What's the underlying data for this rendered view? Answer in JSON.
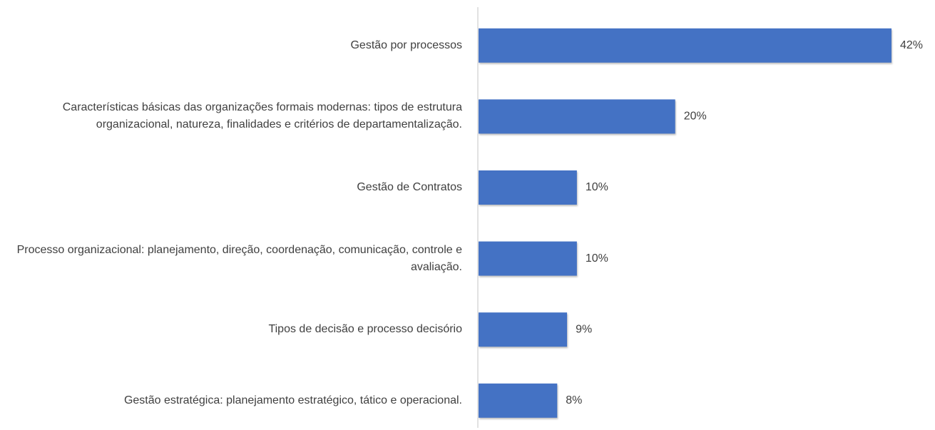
{
  "chart_data": {
    "type": "barh",
    "categories": [
      "Gestão por processos",
      "Características básicas das organizações formais modernas: tipos de estrutura organizacional, natureza, finalidades e critérios de departamentalização.",
      "Gestão de Contratos",
      "Processo organizacional: planejamento, direção, coordenação, comunicação, controle e avaliação.",
      "Tipos de decisão e processo decisório",
      "Gestão estratégica: planejamento estratégico, tático e operacional."
    ],
    "values": [
      42,
      20,
      10,
      10,
      9,
      8
    ],
    "value_labels": [
      "42%",
      "20%",
      "10%",
      "10%",
      "9%",
      "8%"
    ],
    "color": "#4472c4"
  }
}
